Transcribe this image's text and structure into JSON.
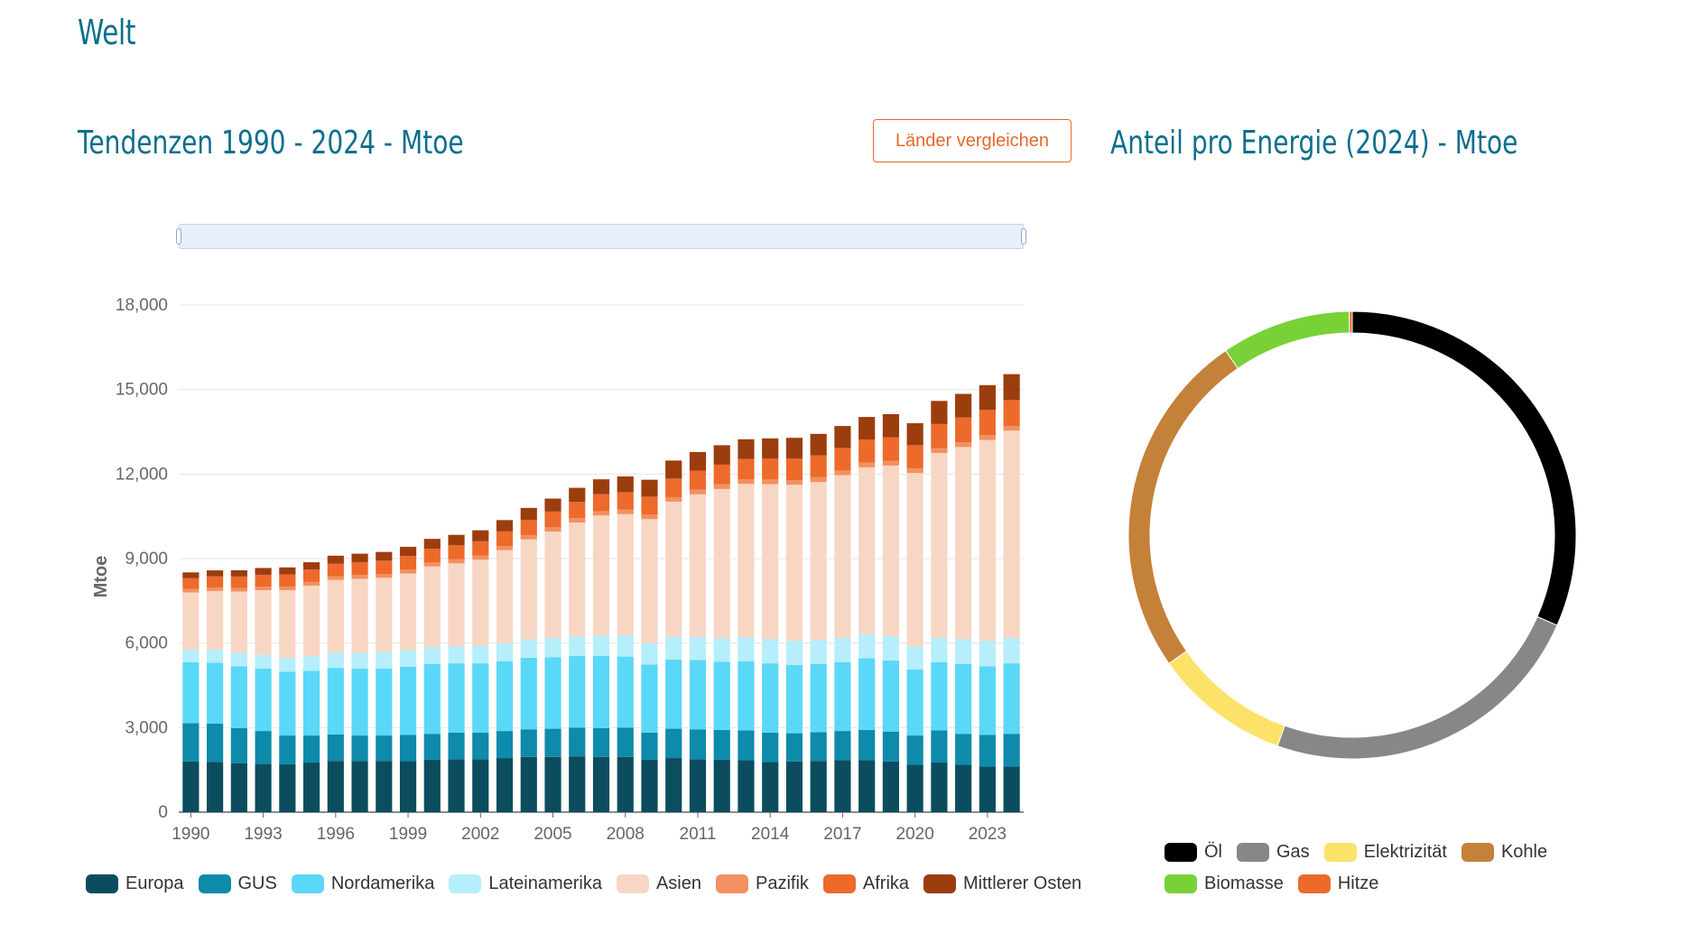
{
  "page": {
    "title": "Welt",
    "trend_title": "Tendenzen 1990 - 2024 - Mtoe",
    "compare_button": "Länder vergleichen",
    "share_title": "Anteil pro Energie (2024) - Mtoe"
  },
  "chart_data": [
    {
      "type": "bar",
      "stacked": true,
      "title": "Tendenzen 1990 - 2024 - Mtoe",
      "ylabel": "Mtoe",
      "xlabel": "",
      "ylim": [
        0,
        18000
      ],
      "yticks": [
        0,
        3000,
        6000,
        9000,
        12000,
        15000,
        18000
      ],
      "ytick_labels": [
        "0",
        "3,000",
        "6,000",
        "9,000",
        "12,000",
        "15,000",
        "18,000"
      ],
      "x_tick_labels": [
        "1990",
        "1993",
        "1996",
        "1999",
        "2002",
        "2005",
        "2008",
        "2011",
        "2014",
        "2017",
        "2020",
        "2023"
      ],
      "categories": [
        "1990",
        "1991",
        "1992",
        "1993",
        "1994",
        "1995",
        "1996",
        "1997",
        "1998",
        "1999",
        "2000",
        "2001",
        "2002",
        "2003",
        "2004",
        "2005",
        "2006",
        "2007",
        "2008",
        "2009",
        "2010",
        "2011",
        "2012",
        "2013",
        "2014",
        "2015",
        "2016",
        "2017",
        "2018",
        "2019",
        "2020",
        "2021",
        "2022",
        "2023",
        "2024"
      ],
      "legend_position": "bottom",
      "series": [
        {
          "name": "Europa",
          "color": "#0b4d5f",
          "values": [
            1800,
            1780,
            1740,
            1720,
            1700,
            1760,
            1820,
            1820,
            1820,
            1820,
            1860,
            1880,
            1880,
            1920,
            1960,
            1960,
            1980,
            1960,
            1960,
            1860,
            1920,
            1880,
            1860,
            1840,
            1780,
            1800,
            1820,
            1840,
            1840,
            1800,
            1680,
            1760,
            1680,
            1620,
            1620
          ]
        },
        {
          "name": "GUS",
          "color": "#0e8aaa",
          "values": [
            1360,
            1360,
            1240,
            1160,
            1020,
            960,
            940,
            900,
            900,
            920,
            920,
            940,
            940,
            960,
            980,
            1000,
            1020,
            1020,
            1040,
            960,
            1040,
            1060,
            1060,
            1060,
            1040,
            1000,
            1020,
            1040,
            1080,
            1060,
            1040,
            1140,
            1100,
            1120,
            1160
          ]
        },
        {
          "name": "Nordamerika",
          "color": "#5ad8f7",
          "values": [
            2160,
            2160,
            2200,
            2220,
            2260,
            2300,
            2360,
            2380,
            2380,
            2420,
            2480,
            2460,
            2460,
            2480,
            2540,
            2540,
            2540,
            2560,
            2520,
            2420,
            2460,
            2460,
            2420,
            2460,
            2460,
            2420,
            2420,
            2440,
            2540,
            2520,
            2340,
            2420,
            2480,
            2440,
            2500
          ]
        },
        {
          "name": "Lateinamerika",
          "color": "#b6eefb",
          "values": [
            460,
            470,
            470,
            480,
            500,
            520,
            540,
            560,
            580,
            590,
            600,
            610,
            620,
            640,
            660,
            680,
            700,
            730,
            760,
            760,
            800,
            820,
            830,
            850,
            860,
            860,
            860,
            860,
            860,
            860,
            820,
            870,
            880,
            890,
            900
          ]
        },
        {
          "name": "Asien",
          "color": "#f8d6c4",
          "values": [
            2020,
            2080,
            2180,
            2300,
            2400,
            2500,
            2580,
            2620,
            2640,
            2720,
            2860,
            2940,
            3060,
            3300,
            3540,
            3780,
            4040,
            4260,
            4300,
            4400,
            4800,
            5060,
            5300,
            5440,
            5500,
            5540,
            5600,
            5780,
            5920,
            6060,
            6160,
            6560,
            6820,
            7140,
            7360
          ]
        },
        {
          "name": "Pazifik",
          "color": "#f29061",
          "values": [
            120,
            122,
            124,
            126,
            128,
            130,
            132,
            134,
            136,
            138,
            140,
            142,
            144,
            146,
            148,
            150,
            152,
            154,
            156,
            158,
            160,
            162,
            164,
            166,
            166,
            166,
            166,
            166,
            166,
            166,
            164,
            166,
            166,
            166,
            166
          ]
        },
        {
          "name": "Afrika",
          "color": "#ed6a2b",
          "values": [
            390,
            400,
            410,
            420,
            430,
            440,
            450,
            460,
            470,
            480,
            490,
            500,
            510,
            520,
            540,
            560,
            580,
            600,
            620,
            640,
            660,
            680,
            700,
            720,
            740,
            760,
            780,
            800,
            820,
            840,
            820,
            860,
            880,
            900,
            920
          ]
        },
        {
          "name": "Mittlerer Osten",
          "color": "#9c3d0e",
          "values": [
            200,
            210,
            220,
            240,
            250,
            260,
            280,
            300,
            310,
            330,
            350,
            370,
            390,
            400,
            430,
            460,
            500,
            530,
            560,
            600,
            640,
            660,
            690,
            700,
            720,
            740,
            760,
            780,
            800,
            820,
            780,
            820,
            840,
            880,
            920
          ]
        }
      ]
    },
    {
      "type": "pie",
      "donut": true,
      "title": "Anteil pro Energie (2024) - Mtoe",
      "legend_position": "bottom",
      "slices": [
        {
          "name": "Öl",
          "color": "#000000",
          "value": 4460
        },
        {
          "name": "Gas",
          "color": "#878787",
          "value": 3360
        },
        {
          "name": "Elektrizität",
          "color": "#fde26a",
          "value": 1390
        },
        {
          "name": "Kohle",
          "color": "#c4813a",
          "value": 3550
        },
        {
          "name": "Biomasse",
          "color": "#78d237",
          "value": 1320
        },
        {
          "name": "Hitze",
          "color": "#ed6a2b",
          "value": 30
        }
      ]
    }
  ]
}
